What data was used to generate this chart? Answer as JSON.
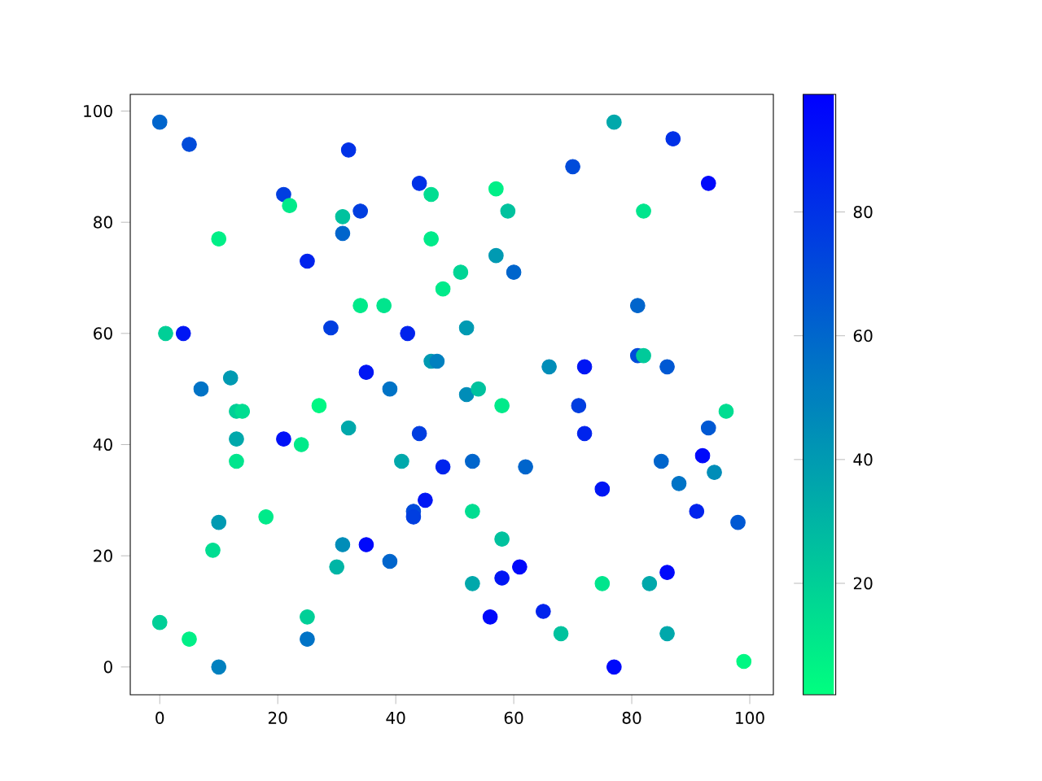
{
  "chart_data": {
    "type": "scatter",
    "marker": "circle",
    "grid": false,
    "xlim": [
      -5,
      104
    ],
    "ylim": [
      -5,
      103
    ],
    "xticks": [
      0,
      20,
      40,
      60,
      80,
      100
    ],
    "yticks": [
      0,
      20,
      40,
      60,
      80,
      100
    ],
    "clim": [
      2,
      99
    ],
    "cticks": [
      20,
      40,
      60,
      80
    ],
    "x": [
      0,
      5,
      21,
      22,
      32,
      31,
      31,
      34,
      25,
      10,
      1,
      4,
      7,
      12,
      13,
      14,
      13,
      13,
      21,
      24,
      27,
      29,
      32,
      34,
      35,
      38,
      39,
      42,
      41,
      44,
      46,
      46,
      44,
      45,
      43,
      43,
      35,
      31,
      30,
      39,
      18,
      9,
      10,
      0,
      5,
      10,
      25,
      25,
      46,
      47,
      48,
      51,
      48,
      52,
      52,
      54,
      53,
      53,
      53,
      57,
      57,
      59,
      60,
      58,
      58,
      58,
      61,
      56,
      62,
      65,
      66,
      68,
      70,
      77,
      71,
      72,
      72,
      75,
      75,
      77,
      82,
      81,
      81,
      82,
      86,
      85,
      83,
      87,
      88,
      86,
      86,
      91,
      92,
      93,
      93,
      94,
      96,
      98,
      99
    ],
    "values": [
      98,
      94,
      85,
      83,
      93,
      81,
      78,
      82,
      73,
      77,
      60,
      60,
      50,
      52,
      46,
      46,
      41,
      37,
      41,
      40,
      47,
      61,
      43,
      65,
      53,
      65,
      50,
      60,
      37,
      87,
      85,
      77,
      42,
      30,
      28,
      27,
      22,
      22,
      18,
      19,
      27,
      21,
      26,
      8,
      5,
      0,
      9,
      5,
      55,
      55,
      68,
      71,
      36,
      61,
      49,
      50,
      37,
      28,
      15,
      86,
      74,
      82,
      71,
      47,
      23,
      16,
      18,
      9,
      36,
      10,
      54,
      6,
      90,
      98,
      47,
      54,
      42,
      32,
      15,
      0,
      82,
      65,
      56,
      56,
      54,
      37,
      15,
      95,
      33,
      17,
      6,
      28,
      38,
      87,
      43,
      35,
      46,
      26,
      1
    ],
    "cvalues": [
      60,
      70,
      75,
      10,
      80,
      25,
      60,
      75,
      85,
      8,
      20,
      90,
      55,
      40,
      20,
      15,
      35,
      12,
      92,
      10,
      5,
      75,
      35,
      10,
      90,
      12,
      55,
      85,
      35,
      80,
      15,
      10,
      75,
      90,
      70,
      75,
      95,
      45,
      30,
      60,
      10,
      15,
      40,
      20,
      8,
      50,
      20,
      55,
      40,
      50,
      10,
      18,
      85,
      40,
      45,
      25,
      60,
      15,
      35,
      8,
      40,
      25,
      60,
      10,
      25,
      90,
      95,
      95,
      60,
      85,
      45,
      25,
      70,
      35,
      75,
      90,
      85,
      90,
      12,
      95,
      12,
      60,
      70,
      22,
      65,
      60,
      35,
      80,
      55,
      95,
      35,
      85,
      95,
      95,
      65,
      45,
      15,
      65,
      5
    ]
  }
}
